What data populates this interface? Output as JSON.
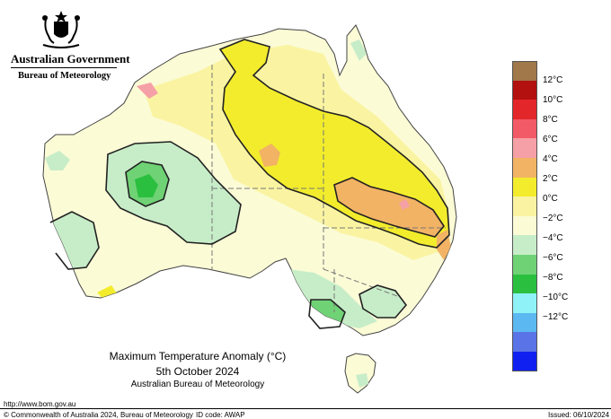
{
  "header": {
    "government": "Australian Government",
    "bureau": "Bureau of Meteorology"
  },
  "legend": {
    "items": [
      {
        "label": "",
        "color": "#a0784a"
      },
      {
        "label": "12°C",
        "color": "#b31010"
      },
      {
        "label": "10°C",
        "color": "#e3262a"
      },
      {
        "label": "8°C",
        "color": "#f25a67"
      },
      {
        "label": "6°C",
        "color": "#f5a0a6"
      },
      {
        "label": "4°C",
        "color": "#f2b365"
      },
      {
        "label": "2°C",
        "color": "#f2ec2c"
      },
      {
        "label": "0°C",
        "color": "#faf4a2"
      },
      {
        "label": "−2°C",
        "color": "#fbfbd6"
      },
      {
        "label": "−4°C",
        "color": "#c7edc8"
      },
      {
        "label": "−6°C",
        "color": "#6fd275"
      },
      {
        "label": "−8°C",
        "color": "#2bbf3f"
      },
      {
        "label": "−10°C",
        "color": "#8ef2f7"
      },
      {
        "label": "−12°C",
        "color": "#5bb8f0"
      }
    ],
    "extra_colors": [
      "#5a73e6",
      "#1020f0"
    ]
  },
  "map_title": {
    "line1": "Maximum Temperature Anomaly (°C)",
    "line2": "5th October 2024",
    "line3": "Australian Bureau of Meteorology"
  },
  "footer": {
    "url": "http://www.bom.gov.au",
    "copyright": "© Commonwealth of Australia 2024, Bureau of Meteorology",
    "id_code": "ID code: AWAP",
    "issued": "Issued: 06/10/2024"
  }
}
